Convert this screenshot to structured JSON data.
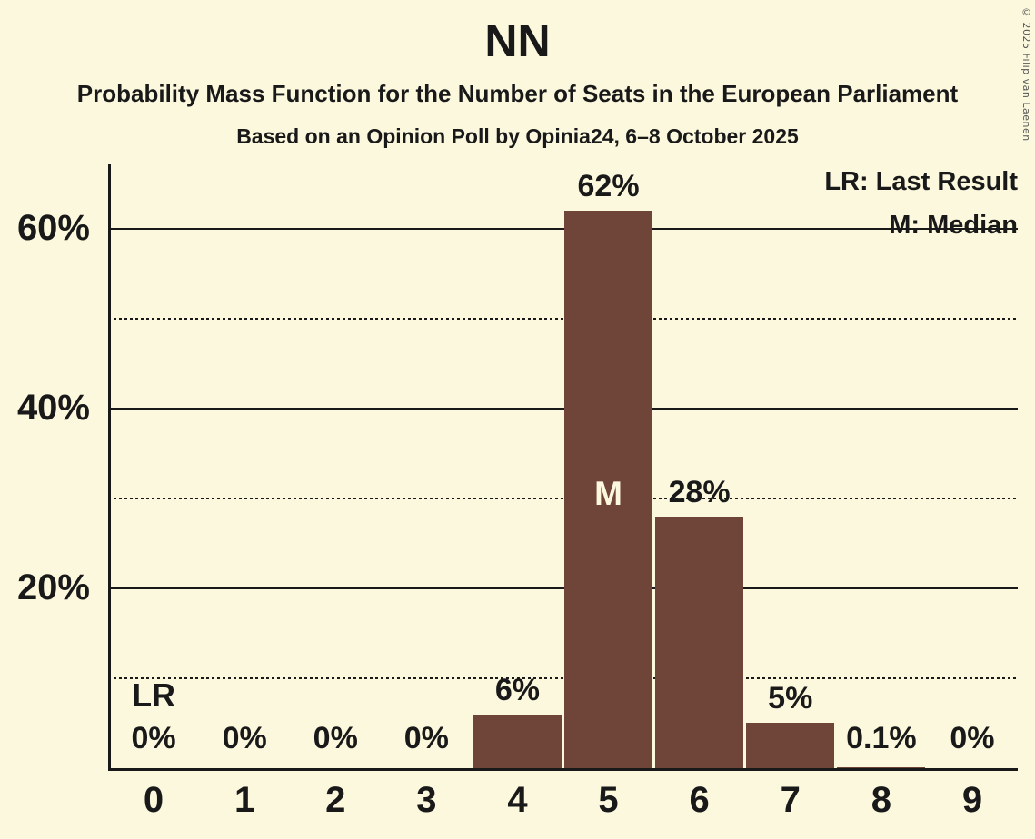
{
  "title": "NN",
  "subtitle": "Probability Mass Function for the Number of Seats in the European Parliament",
  "subsubtitle": "Based on an Opinion Poll by Opinia24, 6–8 October 2025",
  "copyright": "© 2025 Filip van Laenen",
  "legend": {
    "last_result": "LR: Last Result",
    "median": "M: Median"
  },
  "colors": {
    "background": "#fcf8dd",
    "bar": "#6f4539",
    "text": "#191919",
    "median_marker_text": "#fcf8dd",
    "copyright_text": "#555555"
  },
  "chart_data": {
    "type": "bar",
    "title": "NN",
    "categories": [
      "0",
      "1",
      "2",
      "3",
      "4",
      "5",
      "6",
      "7",
      "8",
      "9"
    ],
    "values": [
      0,
      0,
      0,
      0,
      6,
      62,
      28,
      5,
      0.1,
      0
    ],
    "value_labels": [
      "0%",
      "0%",
      "0%",
      "0%",
      "6%",
      "62%",
      "28%",
      "5%",
      "0.1%",
      "0%"
    ],
    "xlabel": "",
    "ylabel": "",
    "unit": "percent",
    "ylim": [
      0,
      67
    ],
    "grid": "horizontal",
    "legend_position": "top-right",
    "y_axis_ticks": [
      {
        "pct": 20,
        "label": "20%"
      },
      {
        "pct": 40,
        "label": "40%"
      },
      {
        "pct": 60,
        "label": "60%"
      }
    ],
    "gridlines": [
      {
        "pct": 10,
        "style": "dotted"
      },
      {
        "pct": 20,
        "style": "solid"
      },
      {
        "pct": 30,
        "style": "dotted"
      },
      {
        "pct": 40,
        "style": "solid"
      },
      {
        "pct": 50,
        "style": "dotted"
      },
      {
        "pct": 60,
        "style": "solid"
      }
    ],
    "median": {
      "index": 5,
      "marker": "M"
    },
    "last_result": {
      "index": 0,
      "marker": "LR"
    }
  }
}
